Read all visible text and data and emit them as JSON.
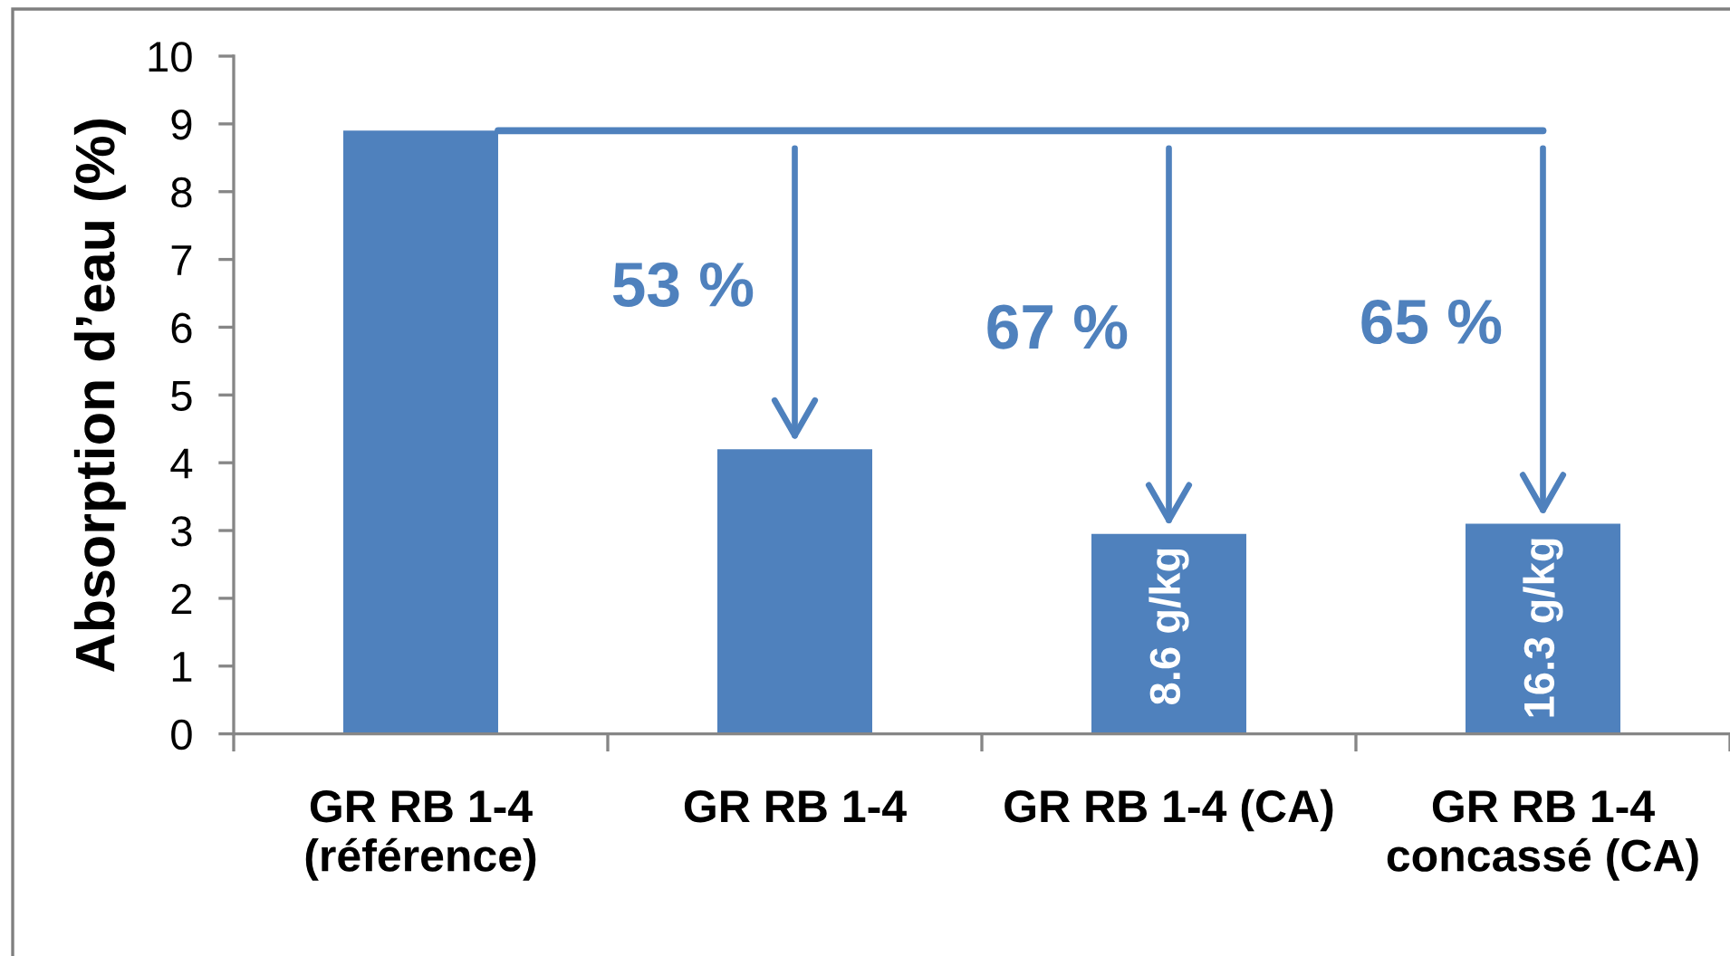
{
  "chart_data": {
    "type": "bar",
    "ylabel": "Absorption d’eau (%)",
    "categories": [
      "GR RB 1-4\n(référence)",
      "GR RB 1-4",
      "GR RB 1-4 (CA)",
      "GR RB 1-4\nconcassé (CA)"
    ],
    "values": [
      8.9,
      4.2,
      2.95,
      3.1
    ],
    "color": "#4f81bd",
    "ylim": [
      0,
      10
    ],
    "yticks": [
      0,
      1,
      2,
      3,
      4,
      5,
      6,
      7,
      8,
      9,
      10
    ],
    "grid": false,
    "ref_lines": [
      {
        "axis": "y",
        "value": 8.9,
        "color": "#4f81bd"
      }
    ],
    "annotations": [
      "53 %",
      "67 %",
      "65 %",
      {
        "text": "8.6 g/kg",
        "x": "GR RB 1-4 (CA)",
        "y": 2.95
      },
      {
        "text": "16.3 g/kg",
        "x": "GR RB 1-4\nconcassé (CA)",
        "y": 3.1
      }
    ]
  }
}
